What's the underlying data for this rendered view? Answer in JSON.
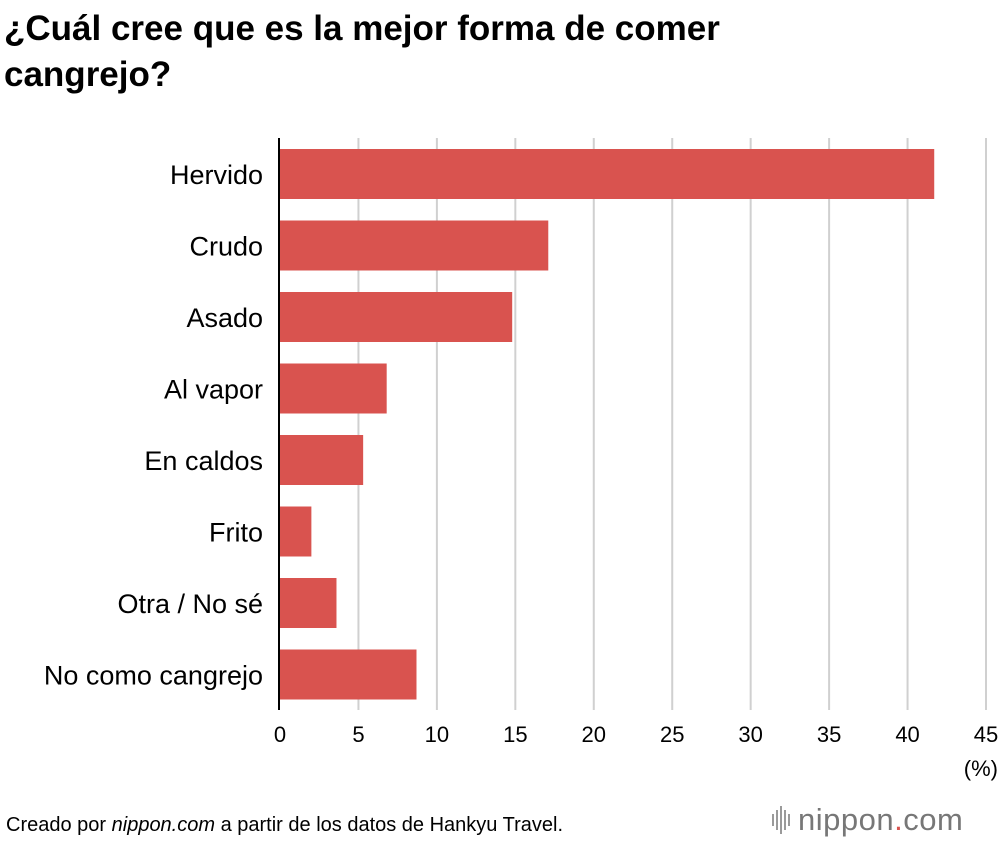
{
  "chart_data": {
    "type": "bar",
    "orientation": "horizontal",
    "title": "¿Cuál cree que es la mejor forma de comer cangrejo?",
    "categories": [
      "Hervido",
      "Crudo",
      "Asado",
      "Al vapor",
      "En caldos",
      "Frito",
      "Otra / No sé",
      "No como cangrejo"
    ],
    "values": [
      41.7,
      17.1,
      14.8,
      6.8,
      5.3,
      2.0,
      3.6,
      8.7
    ],
    "xlim": [
      0,
      45
    ],
    "xticks": [
      "0",
      "5",
      "10",
      "15",
      "20",
      "25",
      "30",
      "35",
      "40",
      "45"
    ],
    "xlabel": "(%)",
    "ylabel": "",
    "grid": true,
    "bar_color": "#d9534f",
    "grid_color": "#d0d0d0"
  },
  "footer": {
    "prefix": "Creado por",
    "source_site": "nippon.com",
    "suffix": "a partir de los datos de Hankyu Travel."
  },
  "logo": {
    "name": "nippon",
    "dot": ".",
    "tld": "com"
  }
}
